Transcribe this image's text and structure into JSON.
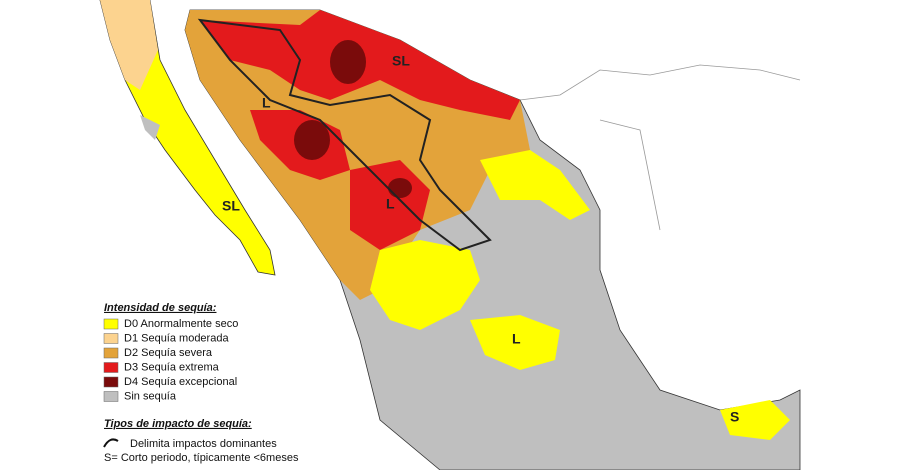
{
  "legend": {
    "title": "Intensidad de sequía:",
    "items": [
      {
        "label": "D0 Anormalmente seco",
        "color": "#ffff00"
      },
      {
        "label": "D1 Sequía moderada",
        "color": "#fcd38f"
      },
      {
        "label": "D2 Sequía severa",
        "color": "#e3a33a"
      },
      {
        "label": "D3 Sequía extrema",
        "color": "#e31a1c"
      },
      {
        "label": "D4 Sequía excepcional",
        "color": "#7a0b0b"
      },
      {
        "label": "Sin sequía",
        "color": "#bfbfbf"
      }
    ]
  },
  "impact": {
    "title": "Tipos de impacto de sequía:",
    "items": [
      "Delimita impactos dominantes",
      "S= Corto periodo, típicamente <6meses"
    ]
  },
  "map_labels": [
    "SL",
    "L",
    "L",
    "SL",
    "L",
    "S"
  ]
}
